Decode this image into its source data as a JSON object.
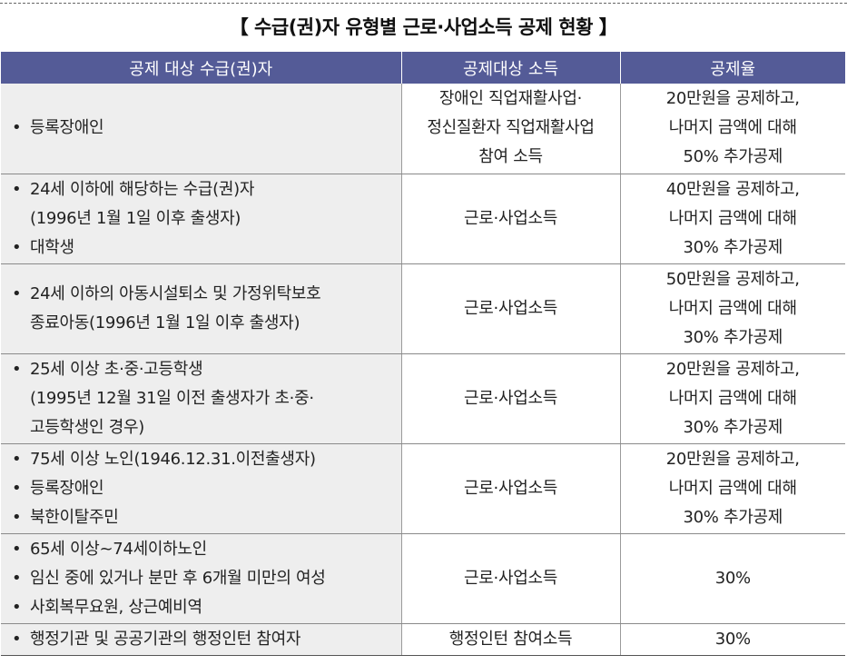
{
  "title": "【 수급(권)자 유형별 근로·사업소득 공제 현황 】",
  "table": {
    "headers": [
      "공제 대상 수급(권)자",
      "공제대상 소득",
      "공제율"
    ],
    "rows": [
      {
        "targets": [
          {
            "text": "등록장애인",
            "bullet": true
          }
        ],
        "income": [
          "장애인 직업재활사업·",
          "정신질환자 직업재활사업",
          "참여 소득"
        ],
        "rate": [
          "20만원을 공제하고,",
          "나머지 금액에 대해",
          "50% 추가공제"
        ]
      },
      {
        "targets": [
          {
            "text": "24세 이하에 해당하는 수급(권)자",
            "bullet": true
          },
          {
            "text": "(1996년 1월 1일 이후 출생자)",
            "bullet": false
          },
          {
            "text": "대학생",
            "bullet": true
          }
        ],
        "income": [
          "근로·사업소득"
        ],
        "rate": [
          "40만원을 공제하고,",
          "나머지 금액에 대해",
          "30% 추가공제"
        ]
      },
      {
        "targets": [
          {
            "text": "24세 이하의 아동시설퇴소 및 가정위탁보호",
            "bullet": true
          },
          {
            "text": "종료아동(1996년 1월 1일 이후 출생자)",
            "bullet": false
          }
        ],
        "income": [
          "근로·사업소득"
        ],
        "rate": [
          "50만원을 공제하고,",
          "나머지 금액에 대해",
          "30% 추가공제"
        ]
      },
      {
        "targets": [
          {
            "text": "25세 이상 초·중·고등학생",
            "bullet": true
          },
          {
            "text": "(1995년 12월 31일 이전 출생자가 초·중·",
            "bullet": false
          },
          {
            "text": "고등학생인 경우)",
            "bullet": false
          }
        ],
        "income": [
          "근로·사업소득"
        ],
        "rate": [
          "20만원을 공제하고,",
          "나머지 금액에 대해",
          "30% 추가공제"
        ]
      },
      {
        "targets": [
          {
            "text": "75세 이상 노인(1946.12.31.이전출생자)",
            "bullet": true
          },
          {
            "text": "등록장애인",
            "bullet": true
          },
          {
            "text": "북한이탈주민",
            "bullet": true
          }
        ],
        "income": [
          "근로·사업소득"
        ],
        "rate": [
          "20만원을 공제하고,",
          "나머지 금액에 대해",
          "30% 추가공제"
        ]
      },
      {
        "targets": [
          {
            "text": "65세 이상~74세이하노인",
            "bullet": true
          },
          {
            "text": "임신 중에 있거나 분만 후 6개월 미만의 여성",
            "bullet": true
          },
          {
            "text": "사회복무요원, 상근예비역",
            "bullet": true
          }
        ],
        "income": [
          "근로·사업소득"
        ],
        "rate": [
          "30%"
        ]
      },
      {
        "targets": [
          {
            "text": "행정기관 및 공공기관의 행정인턴 참여자",
            "bullet": true
          }
        ],
        "income": [
          "행정인턴 참여소득"
        ],
        "rate": [
          "30%"
        ]
      }
    ]
  }
}
